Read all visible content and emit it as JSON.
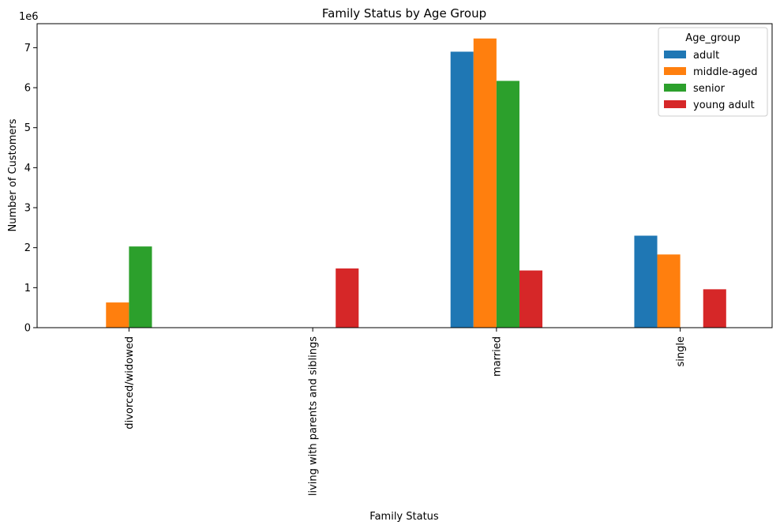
{
  "chart_data": {
    "type": "bar",
    "title": "Family Status by Age Group",
    "xlabel": "Family Status",
    "ylabel": "Number of Customers",
    "y_offset_label": "1e6",
    "categories": [
      "divorced/widowed",
      "living with parents and siblings",
      "married",
      "single"
    ],
    "series": [
      {
        "name": "adult",
        "color": "#1f77b4",
        "values": [
          0,
          0,
          6900000,
          2300000
        ]
      },
      {
        "name": "middle-aged",
        "color": "#ff7f0e",
        "values": [
          630000,
          0,
          7230000,
          1830000
        ]
      },
      {
        "name": "senior",
        "color": "#2ca02c",
        "values": [
          2030000,
          0,
          6170000,
          0
        ]
      },
      {
        "name": "young adult",
        "color": "#d62728",
        "values": [
          0,
          1480000,
          1430000,
          960000
        ]
      }
    ],
    "ylim": [
      0,
      7600000
    ],
    "yticks": [
      0,
      1000000,
      2000000,
      3000000,
      4000000,
      5000000,
      6000000,
      7000000
    ],
    "ytick_labels": [
      "0",
      "1",
      "2",
      "3",
      "4",
      "5",
      "6",
      "7"
    ],
    "grid": false,
    "legend": {
      "title": "Age_group",
      "placement": "top-right"
    }
  }
}
